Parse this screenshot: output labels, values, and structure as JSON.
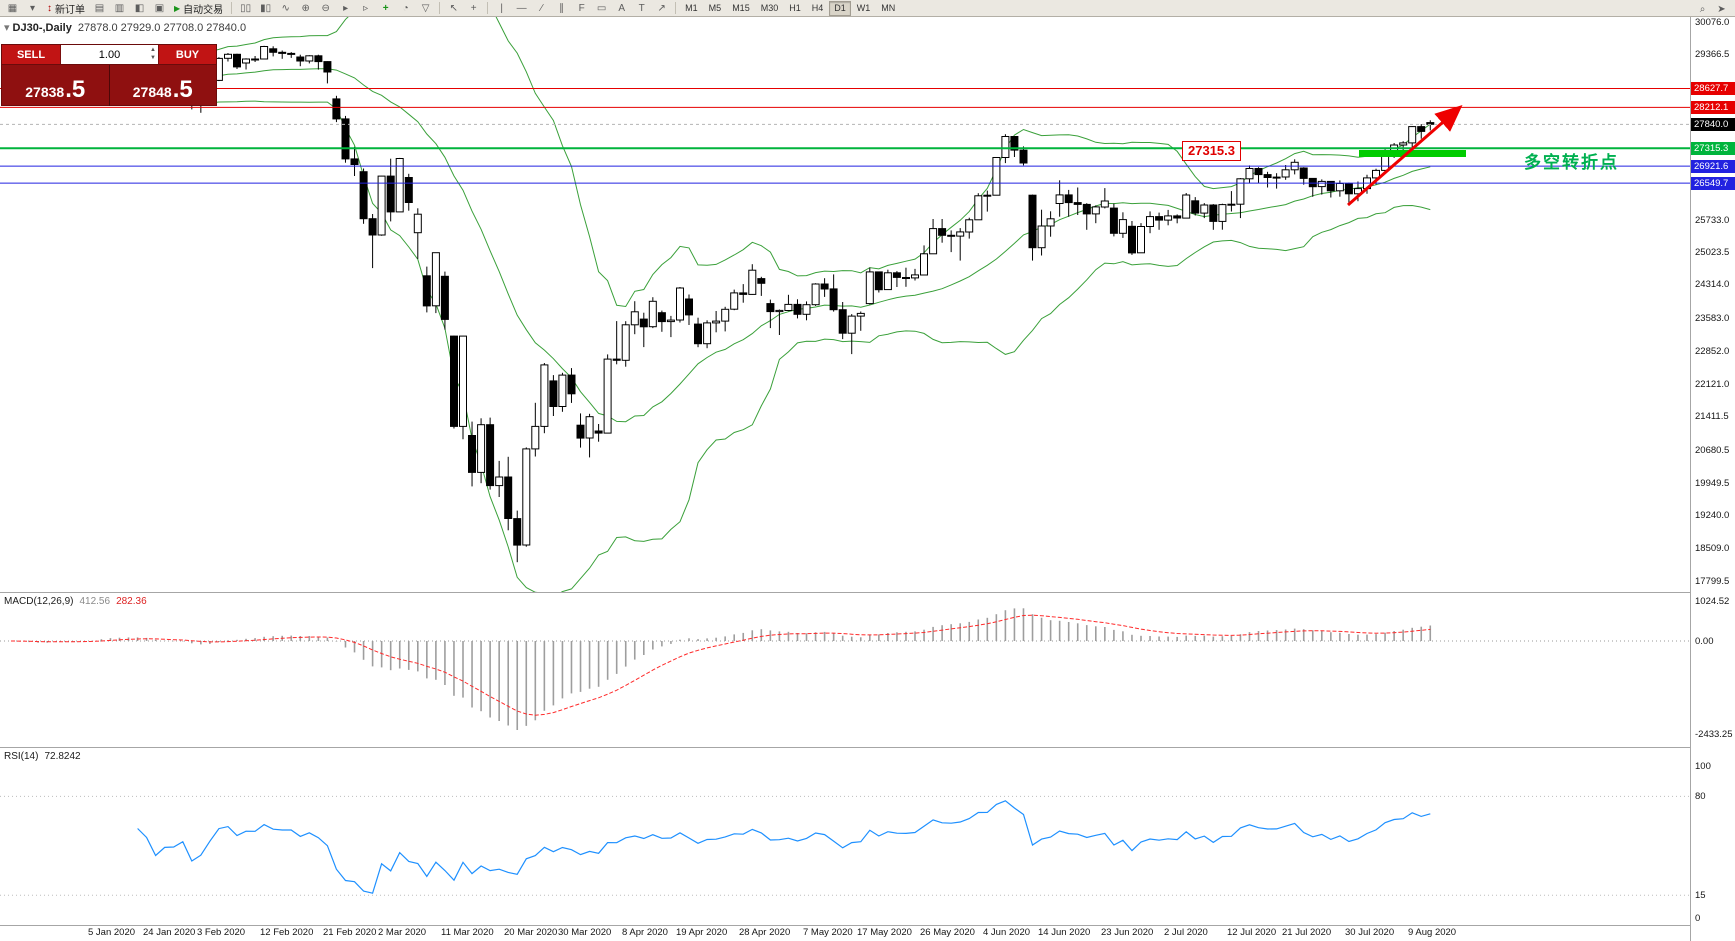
{
  "toolbar": {
    "new_order_label": "新订单",
    "autotrading_label": "自动交易",
    "timeframes": [
      "M1",
      "M5",
      "M15",
      "M30",
      "H1",
      "H4",
      "D1",
      "W1",
      "MN"
    ],
    "active_timeframe": "D1",
    "icons_left": [
      {
        "name": "new-chart-icon",
        "glyph": "▦"
      },
      {
        "name": "chart-profiles-icon",
        "glyph": "▾"
      }
    ],
    "new_order_icon": {
      "name": "new-order-icon",
      "glyph": "↕",
      "color": "#b00000"
    },
    "icons_mid": [
      {
        "name": "market-watch-icon",
        "glyph": "▤"
      },
      {
        "name": "data-window-icon",
        "glyph": "▥"
      },
      {
        "name": "navigator-icon",
        "glyph": "◧"
      },
      {
        "name": "terminal-icon",
        "glyph": "▣"
      }
    ],
    "autotrading_icon": {
      "name": "autotrading-play-icon",
      "glyph": "▶",
      "color": "#1a941a"
    },
    "icons_chart": [
      {
        "name": "bar-chart-icon",
        "glyph": "▯▯"
      },
      {
        "name": "candlestick-chart-icon",
        "glyph": "▮▯"
      },
      {
        "name": "line-chart-icon",
        "glyph": "∿"
      },
      {
        "name": "zoom-in-icon",
        "glyph": "⊕"
      },
      {
        "name": "zoom-out-icon",
        "glyph": "⊖"
      },
      {
        "name": "auto-scroll-icon",
        "glyph": "▸"
      },
      {
        "name": "chart-shift-icon",
        "glyph": "▹"
      },
      {
        "name": "indicators-icon",
        "glyph": "+",
        "color": "#1a941a"
      },
      {
        "name": "periods-icon",
        "glyph": "◔"
      },
      {
        "name": "templates-icon",
        "glyph": "▽"
      }
    ],
    "icons_cursor": [
      {
        "name": "cursor-icon",
        "glyph": "↖"
      },
      {
        "name": "crosshair-icon",
        "glyph": "+"
      }
    ],
    "icons_draw": [
      {
        "name": "vertical-line-icon",
        "glyph": "|"
      },
      {
        "name": "horizontal-line-icon",
        "glyph": "—"
      },
      {
        "name": "trendline-icon",
        "glyph": "∕"
      },
      {
        "name": "channel-icon",
        "glyph": "∥"
      },
      {
        "name": "fibonacci-icon",
        "glyph": "F"
      },
      {
        "name": "shapes-icon",
        "glyph": "▭"
      },
      {
        "name": "text-icon",
        "glyph": "A"
      },
      {
        "name": "label-icon",
        "glyph": "T"
      },
      {
        "name": "arrows-icon",
        "glyph": "↗"
      }
    ],
    "icons_right": [
      {
        "name": "search-icon",
        "glyph": "⌕"
      },
      {
        "name": "pointer-icon",
        "glyph": "➤"
      }
    ]
  },
  "quote": {
    "toggle_icon": "▾",
    "symbol_label": "DJ30-,Daily",
    "ohlc": "27878.0 27929.0 27708.0 27840.0"
  },
  "trade_panel": {
    "sell_label": "SELL",
    "buy_label": "BUY",
    "volume": "1.00",
    "volume_up_icon": "▲",
    "volume_down_icon": "▼",
    "sell_price_main": "27838",
    "sell_price_big": ".5",
    "buy_price_main": "27848",
    "buy_price_big": ".5"
  },
  "chart": {
    "annotation_price": "27315.3",
    "annotation_text": "多空转折点",
    "annotation_color": "#00b050",
    "y_labels": [
      {
        "text": "30076.0",
        "price": 30076.0
      },
      {
        "text": "29366.5",
        "price": 29366.5
      },
      {
        "text": "25733.0",
        "price": 25733.0
      },
      {
        "text": "25023.5",
        "price": 25023.5
      },
      {
        "text": "24314.0",
        "price": 24314.0
      },
      {
        "text": "23583.0",
        "price": 23583.0
      },
      {
        "text": "22852.0",
        "price": 22852.0
      },
      {
        "text": "22121.0",
        "price": 22121.0
      },
      {
        "text": "21411.5",
        "price": 21411.5
      },
      {
        "text": "20680.5",
        "price": 20680.5
      },
      {
        "text": "19949.5",
        "price": 19949.5
      },
      {
        "text": "19240.0",
        "price": 19240.0
      },
      {
        "text": "18509.0",
        "price": 18509.0
      },
      {
        "text": "17799.5",
        "price": 17799.5
      }
    ],
    "price_lines": [
      {
        "text": "28627.7",
        "price": 28627.7,
        "color": "#e60000",
        "style": "solid",
        "width": 1
      },
      {
        "text": "28212.1",
        "price": 28212.1,
        "color": "#e60000",
        "style": "solid",
        "width": 1
      },
      {
        "text": "27840.0",
        "price": 27840.0,
        "color": "#000000",
        "style": "dash",
        "width": 1,
        "line_color": "#b4b4b4"
      },
      {
        "text": "27315.3",
        "price": 27315.3,
        "color": "#00b43c",
        "style": "solid",
        "width": 2
      },
      {
        "text": "26921.6",
        "price": 26921.6,
        "color": "#2222e0",
        "style": "solid",
        "width": 1
      },
      {
        "text": "26549.7",
        "price": 26549.7,
        "color": "#2222e0",
        "style": "solid",
        "width": 1
      }
    ],
    "x_labels": [
      "5 Jan 2020",
      "24 Jan 2020",
      "3 Feb 2020",
      "12 Feb 2020",
      "21 Feb 2020",
      "2 Mar 2020",
      "11 Mar 2020",
      "20 Mar 2020",
      "30 Mar 2020",
      "8 Apr 2020",
      "19 Apr 2020",
      "28 Apr 2020",
      "7 May 2020",
      "17 May 2020",
      "26 May 2020",
      "4 Jun 2020",
      "14 Jun 2020",
      "23 Jun 2020",
      "2 Jul 2020",
      "12 Jul 2020",
      "21 Jul 2020",
      "30 Jul 2020",
      "9 Aug 2020"
    ]
  },
  "macd": {
    "name": "MACD(12,26,9)",
    "value_main": "412.56",
    "value_signal": "282.36",
    "scale_labels": [
      {
        "text": "1024.52",
        "v": 1024.52
      },
      {
        "text": "0.00",
        "v": 0
      },
      {
        "text": "-2433.25",
        "v": -2433.25
      }
    ]
  },
  "rsi": {
    "name": "RSI(14)",
    "value": "72.8242",
    "scale_labels": [
      {
        "text": "100",
        "v": 100
      },
      {
        "text": "80",
        "v": 80
      },
      {
        "text": "15",
        "v": 15
      },
      {
        "text": "0",
        "v": 0
      }
    ],
    "levels": [
      80,
      15
    ]
  },
  "chart_data": {
    "type": "candlestick",
    "symbol": "DJ30-",
    "period": "Daily",
    "last_ohlc": {
      "open": 27878.0,
      "high": 27929.0,
      "low": 27708.0,
      "close": 27840.0
    },
    "overlays": {
      "bollinger": {
        "period": 20,
        "deviation": 2
      }
    },
    "indicator_panes": [
      {
        "indicator": "MACD",
        "params": "12,26,9",
        "values": [
          412.56,
          282.36
        ],
        "scale": [
          1024.52,
          0.0,
          -2433.25
        ]
      },
      {
        "indicator": "RSI",
        "params": "14",
        "value": 72.8242,
        "scale": [
          0,
          100
        ],
        "levels": [
          80,
          15
        ]
      }
    ],
    "horizontal_lines": [
      28627.7,
      28212.1,
      27840.0,
      27315.3,
      26921.6,
      26549.7
    ],
    "candles": [
      [
        28639,
        28872,
        28627,
        28869
      ],
      [
        28869,
        28897,
        28553,
        28635
      ],
      [
        28635,
        28779,
        28566,
        28703
      ],
      [
        28703,
        28754,
        28524,
        28584
      ],
      [
        28584,
        28769,
        28565,
        28745
      ],
      [
        28745,
        28988,
        28738,
        28957
      ],
      [
        28957,
        29009,
        28789,
        28824
      ],
      [
        28824,
        28932,
        28774,
        28907
      ],
      [
        28907,
        28981,
        28844,
        28939
      ],
      [
        28939,
        29127,
        28904,
        29030
      ],
      [
        29030,
        29322,
        29005,
        29298
      ],
      [
        29298,
        29389,
        29244,
        29348
      ],
      [
        29348,
        29356,
        29122,
        29196
      ],
      [
        29196,
        29320,
        29137,
        29186
      ],
      [
        29186,
        29244,
        29056,
        29160
      ],
      [
        29160,
        29189,
        28843,
        28990
      ],
      [
        28760,
        28778,
        28440,
        28536
      ],
      [
        28536,
        28790,
        28477,
        28723
      ],
      [
        28723,
        28813,
        28627,
        28734
      ],
      [
        28734,
        28944,
        28660,
        28859
      ],
      [
        28859,
        28870,
        28169,
        28256
      ],
      [
        28320,
        28466,
        28093,
        28400
      ],
      [
        28400,
        28842,
        28375,
        28808
      ],
      [
        28808,
        29316,
        28792,
        29291
      ],
      [
        29291,
        29409,
        29221,
        29380
      ],
      [
        29380,
        29390,
        29056,
        29103
      ],
      [
        29188,
        29293,
        29046,
        29277
      ],
      [
        29277,
        29342,
        29211,
        29276
      ],
      [
        29276,
        29568,
        29265,
        29551
      ],
      [
        29500,
        29556,
        29333,
        29423
      ],
      [
        29423,
        29463,
        29282,
        29398
      ],
      [
        29398,
        29428,
        29302,
        29400
      ],
      [
        29320,
        29371,
        29118,
        29233
      ],
      [
        29233,
        29361,
        29180,
        29348
      ],
      [
        29348,
        29371,
        29043,
        29220
      ],
      [
        29220,
        29226,
        28740,
        28992
      ],
      [
        28400,
        28467,
        27890,
        27961
      ],
      [
        27961,
        28025,
        26998,
        27081
      ],
      [
        27081,
        27347,
        26704,
        26958
      ],
      [
        26800,
        26869,
        25653,
        25767
      ],
      [
        25767,
        25870,
        24681,
        25409
      ],
      [
        25409,
        26706,
        25391,
        26703
      ],
      [
        26703,
        27084,
        25707,
        25917
      ],
      [
        25917,
        27102,
        25915,
        27090
      ],
      [
        26671,
        26753,
        25943,
        26121
      ],
      [
        25459,
        25994,
        24882,
        25865
      ],
      [
        24512,
        24713,
        23707,
        23851
      ],
      [
        23851,
        25020,
        23690,
        25018
      ],
      [
        24500,
        24604,
        23328,
        23553
      ],
      [
        23186,
        23196,
        21154,
        21200
      ],
      [
        21200,
        23189,
        20917,
        23185
      ],
      [
        21000,
        21306,
        19882,
        20188
      ],
      [
        20188,
        21379,
        19952,
        21237
      ],
      [
        21237,
        21394,
        19810,
        19899
      ],
      [
        19899,
        20442,
        19649,
        20087
      ],
      [
        20087,
        20531,
        18917,
        19174
      ],
      [
        19174,
        19350,
        18214,
        18592
      ],
      [
        18592,
        20738,
        18555,
        20705
      ],
      [
        20705,
        21720,
        20538,
        21200
      ],
      [
        21200,
        22595,
        21051,
        22552
      ],
      [
        22200,
        22328,
        21428,
        21637
      ],
      [
        21637,
        22378,
        21522,
        22327
      ],
      [
        22327,
        22482,
        21717,
        21917
      ],
      [
        21227,
        21487,
        20735,
        20944
      ],
      [
        20944,
        21477,
        20519,
        21413
      ],
      [
        21100,
        21253,
        20863,
        21053
      ],
      [
        21053,
        22783,
        21052,
        22680
      ],
      [
        22680,
        23514,
        22565,
        22654
      ],
      [
        22654,
        23513,
        22512,
        23434
      ],
      [
        23434,
        23953,
        23227,
        23719
      ],
      [
        23560,
        23699,
        22943,
        23391
      ],
      [
        23391,
        24041,
        23361,
        23950
      ],
      [
        23700,
        23745,
        23279,
        23504
      ],
      [
        23504,
        23630,
        23163,
        23538
      ],
      [
        23538,
        24264,
        23485,
        24242
      ],
      [
        24000,
        24099,
        23430,
        23650
      ],
      [
        23450,
        23590,
        22942,
        23019
      ],
      [
        23019,
        23533,
        22920,
        23476
      ],
      [
        23476,
        23738,
        23268,
        23515
      ],
      [
        23515,
        23830,
        23288,
        23775
      ],
      [
        23775,
        24207,
        23755,
        24134
      ],
      [
        24134,
        24329,
        23920,
        24102
      ],
      [
        24102,
        24765,
        24096,
        24634
      ],
      [
        24450,
        24489,
        24070,
        24346
      ],
      [
        23900,
        23987,
        23361,
        23724
      ],
      [
        23724,
        23771,
        23209,
        23750
      ],
      [
        23750,
        24094,
        23732,
        23883
      ],
      [
        23883,
        23995,
        23574,
        23665
      ],
      [
        23665,
        23948,
        23532,
        23876
      ],
      [
        23876,
        24349,
        23850,
        24331
      ],
      [
        24331,
        24459,
        24046,
        24222
      ],
      [
        24222,
        24541,
        23725,
        23765
      ],
      [
        23765,
        23935,
        23119,
        23248
      ],
      [
        23248,
        23669,
        22790,
        23625
      ],
      [
        23625,
        23727,
        23302,
        23685
      ],
      [
        23900,
        24692,
        23880,
        24597
      ],
      [
        24597,
        24602,
        24144,
        24206
      ],
      [
        24206,
        24646,
        24198,
        24576
      ],
      [
        24576,
        24614,
        24264,
        24474
      ],
      [
        24474,
        24689,
        24268,
        24465
      ],
      [
        24465,
        24663,
        24408,
        24530
      ],
      [
        24530,
        25180,
        24525,
        24995
      ],
      [
        24995,
        25759,
        24990,
        25548
      ],
      [
        25548,
        25760,
        25239,
        25401
      ],
      [
        25401,
        25509,
        25032,
        25383
      ],
      [
        25383,
        25559,
        24844,
        25475
      ],
      [
        25475,
        25787,
        25329,
        25743
      ],
      [
        25743,
        26326,
        25740,
        26270
      ],
      [
        26270,
        26384,
        25923,
        26282
      ],
      [
        26282,
        27122,
        26280,
        27111
      ],
      [
        27111,
        27623,
        26988,
        27572
      ],
      [
        27572,
        27577,
        27123,
        27272
      ],
      [
        27272,
        27356,
        26938,
        26990
      ],
      [
        26282,
        26295,
        24844,
        25128
      ],
      [
        25128,
        25965,
        24957,
        25605
      ],
      [
        25605,
        25929,
        25370,
        25763
      ],
      [
        26100,
        26611,
        25811,
        26290
      ],
      [
        26290,
        26400,
        25810,
        26120
      ],
      [
        26120,
        26451,
        25848,
        26080
      ],
      [
        26080,
        26106,
        25522,
        25871
      ],
      [
        25871,
        26059,
        25667,
        26025
      ],
      [
        26025,
        26439,
        25993,
        26156
      ],
      [
        26000,
        26101,
        25376,
        25445
      ],
      [
        25445,
        25906,
        25344,
        25746
      ],
      [
        25600,
        25716,
        24971,
        25016
      ],
      [
        25016,
        25669,
        25015,
        25595
      ],
      [
        25595,
        25926,
        25448,
        25813
      ],
      [
        25813,
        25900,
        25523,
        25735
      ],
      [
        25735,
        25960,
        25620,
        25827
      ],
      [
        25827,
        25860,
        25666,
        25780
      ],
      [
        25780,
        26330,
        25779,
        26287
      ],
      [
        26160,
        26240,
        25836,
        25890
      ],
      [
        25890,
        26110,
        25780,
        26067
      ],
      [
        26067,
        26086,
        25523,
        25706
      ],
      [
        25706,
        26095,
        25525,
        26075
      ],
      [
        26075,
        26372,
        25924,
        26085
      ],
      [
        26085,
        26658,
        25780,
        26643
      ],
      [
        26643,
        26938,
        26553,
        26870
      ],
      [
        26870,
        26898,
        26547,
        26735
      ],
      [
        26735,
        26797,
        26451,
        26672
      ],
      [
        26672,
        26766,
        26427,
        26681
      ],
      [
        26681,
        26946,
        26621,
        26840
      ],
      [
        26840,
        27072,
        26739,
        27005
      ],
      [
        26880,
        26899,
        26513,
        26652
      ],
      [
        26652,
        26654,
        26248,
        26470
      ],
      [
        26470,
        26629,
        26296,
        26585
      ],
      [
        26585,
        26590,
        26232,
        26379
      ],
      [
        26379,
        26609,
        26250,
        26540
      ],
      [
        26540,
        26560,
        26110,
        26313
      ],
      [
        26313,
        26584,
        26150,
        26428
      ],
      [
        26428,
        26734,
        26316,
        26664
      ],
      [
        26664,
        26865,
        26519,
        26828
      ],
      [
        26828,
        27292,
        26804,
        27201
      ],
      [
        27201,
        27430,
        27102,
        27387
      ],
      [
        27387,
        27470,
        27183,
        27433
      ],
      [
        27433,
        27800,
        27333,
        27791
      ],
      [
        27791,
        27845,
        27525,
        27686
      ],
      [
        27878,
        27929,
        27708,
        27840
      ]
    ]
  }
}
